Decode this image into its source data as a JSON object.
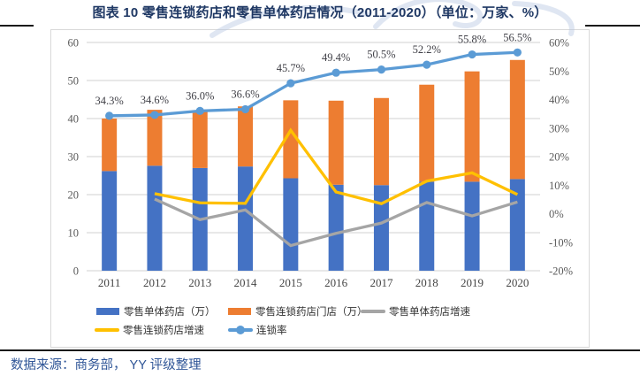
{
  "title": "图表 10 零售连锁药店和零售单体药店情况（2011-2020）（单位：万家、%）",
  "source_note": "数据来源：商务部， YY 评级整理",
  "colors": {
    "title_text": "#1F3864",
    "source_text": "#2F5597",
    "grid": "#D9D9D9",
    "axis_text": "#595959",
    "data_label_text": "#3F3F46",
    "bar_single": "#4472C4",
    "bar_chain": "#ED7D31",
    "line_single_growth": "#A5A5A5",
    "line_chain_growth": "#FFC000",
    "line_chain_rate": "#5B9BD5",
    "rule": "#1A1A1A",
    "watermark": "#B7C7E2"
  },
  "chart_data": {
    "type": "combo (stacked bar + line)",
    "categories": [
      "2011",
      "2012",
      "2013",
      "2014",
      "2015",
      "2016",
      "2017",
      "2018",
      "2019",
      "2020"
    ],
    "bar_series": [
      {
        "name": "零售单体药店（万）",
        "color": "#4472C4",
        "values": [
          26.2,
          27.6,
          27.0,
          27.4,
          24.3,
          22.6,
          22.5,
          23.4,
          23.4,
          24.1
        ]
      },
      {
        "name": "零售连锁药店门店（万）",
        "color": "#ED7D31",
        "values": [
          13.8,
          14.7,
          15.1,
          15.8,
          20.5,
          22.1,
          22.9,
          25.5,
          29.0,
          31.3
        ]
      }
    ],
    "line_series": [
      {
        "name": "零售单体药店增速",
        "color": "#A5A5A5",
        "axis": "right",
        "marker": false,
        "values": [
          null,
          5.1,
          -2.1,
          1.3,
          -11.2,
          -6.9,
          -3.3,
          3.9,
          -0.8,
          4.1
        ]
      },
      {
        "name": "零售连锁药店增速",
        "color": "#FFC000",
        "axis": "right",
        "marker": false,
        "values": [
          null,
          7.0,
          3.8,
          3.6,
          29.2,
          7.6,
          3.5,
          11.4,
          14.3,
          6.7
        ]
      },
      {
        "name": "连锁率",
        "color": "#5B9BD5",
        "axis": "right",
        "marker": true,
        "values": [
          34.3,
          34.6,
          36.0,
          36.6,
          45.7,
          49.4,
          50.5,
          52.2,
          55.8,
          56.5
        ],
        "labels": [
          "34.3%",
          "34.6%",
          "36.0%",
          "36.6%",
          "45.7%",
          "49.4%",
          "50.5%",
          "52.2%",
          "55.8%",
          "56.5%"
        ]
      }
    ],
    "left_axis": {
      "min": 0,
      "max": 60,
      "ticks": [
        "0",
        "10",
        "20",
        "30",
        "40",
        "50",
        "60"
      ]
    },
    "right_axis": {
      "min": -20,
      "max": 60,
      "ticks": [
        "-20%",
        "-10%",
        "0%",
        "10%",
        "20%",
        "30%",
        "40%",
        "50%",
        "60%"
      ]
    },
    "grid": true,
    "legend_position": "bottom"
  },
  "legend": {
    "rows": [
      [
        {
          "swatch": "bar",
          "color": "#4472C4",
          "label": "零售单体药店（万）"
        },
        {
          "swatch": "bar",
          "color": "#ED7D31",
          "label": "零售连锁药店门店（万）"
        },
        {
          "swatch": "line",
          "color": "#A5A5A5",
          "label": "零售单体药店增速"
        }
      ],
      [
        {
          "swatch": "line",
          "color": "#FFC000",
          "label": "零售连锁药店增速"
        },
        {
          "swatch": "line-marker",
          "color": "#5B9BD5",
          "label": "连锁率"
        }
      ]
    ]
  }
}
